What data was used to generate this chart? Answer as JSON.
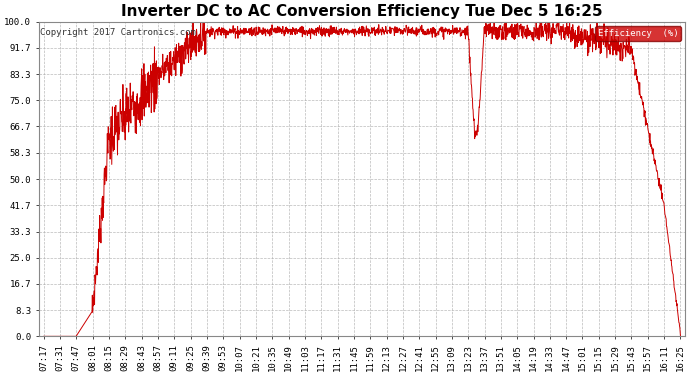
{
  "title": "Inverter DC to AC Conversion Efficiency Tue Dec 5 16:25",
  "copyright": "Copyright 2017 Cartronics.com",
  "legend_label": "Efficiency  (%)",
  "legend_bg": "#cc0000",
  "legend_text_color": "#ffffff",
  "line_color": "#cc0000",
  "background_color": "#ffffff",
  "grid_color": "#aaaaaa",
  "yticks": [
    0.0,
    8.3,
    16.7,
    25.0,
    33.3,
    41.7,
    50.0,
    58.3,
    66.7,
    75.0,
    83.3,
    91.7,
    100.0
  ],
  "ytick_labels": [
    "0.0",
    "8.3",
    "16.7",
    "25.0",
    "33.3",
    "41.7",
    "50.0",
    "58.3",
    "66.7",
    "75.0",
    "83.3",
    "91.7",
    "100.0"
  ],
  "xtick_labels": [
    "07:17",
    "07:31",
    "07:47",
    "08:01",
    "08:15",
    "08:29",
    "08:43",
    "08:57",
    "09:11",
    "09:25",
    "09:39",
    "09:53",
    "10:07",
    "10:21",
    "10:35",
    "10:49",
    "11:03",
    "11:17",
    "11:31",
    "11:45",
    "11:59",
    "12:13",
    "12:27",
    "12:41",
    "12:55",
    "13:09",
    "13:23",
    "13:37",
    "13:51",
    "14:05",
    "14:19",
    "14:33",
    "14:47",
    "15:01",
    "15:15",
    "15:29",
    "15:43",
    "15:57",
    "16:11",
    "16:25"
  ],
  "ylim": [
    0,
    100
  ],
  "title_fontsize": 11,
  "copyright_fontsize": 6.5,
  "tick_fontsize": 6.5
}
